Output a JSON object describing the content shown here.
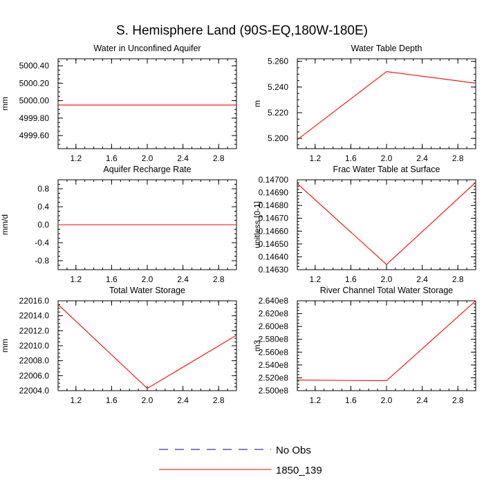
{
  "title": "S. Hemisphere Land (90S-EQ,180W-180E)",
  "colors": {
    "model": "#ff0000",
    "obs": "#00008b",
    "axis": "#000000"
  },
  "legend": [
    {
      "label": "No Obs",
      "style": "dashed",
      "color": "#00008b"
    },
    {
      "label": "1850_139",
      "style": "solid",
      "color": "#ff0000"
    }
  ],
  "chart_data": [
    {
      "type": "line",
      "title": "Water in Unconfined Aquifer",
      "ylabel": "mm",
      "xlim": [
        1.0,
        3.0
      ],
      "ylim": [
        4999.45,
        5000.48
      ],
      "xticks": [
        "1.2",
        "1.6",
        "2.0",
        "2.4",
        "2.8"
      ],
      "yticks": [
        "4999.60",
        "4999.80",
        "5000.00",
        "5000.20",
        "5000.40"
      ],
      "series": [
        {
          "name": "1850_139",
          "x": [
            1,
            2,
            3
          ],
          "y": [
            4999.95,
            4999.95,
            4999.95
          ]
        }
      ]
    },
    {
      "type": "line",
      "title": "Water Table Depth",
      "ylabel": "m",
      "xlim": [
        1.0,
        3.0
      ],
      "ylim": [
        5.192,
        5.262
      ],
      "xticks": [
        "1.2",
        "1.6",
        "2.0",
        "2.4",
        "2.8"
      ],
      "yticks": [
        "5.200",
        "5.220",
        "5.240",
        "5.260"
      ],
      "series": [
        {
          "name": "1850_139",
          "x": [
            1,
            2,
            3
          ],
          "y": [
            5.199,
            5.252,
            5.243
          ]
        }
      ]
    },
    {
      "type": "line",
      "title": "Aquifer Recharge Rate",
      "ylabel": "mm/d",
      "xlim": [
        1.0,
        3.0
      ],
      "ylim": [
        -1.0,
        1.0
      ],
      "xticks": [
        "1.2",
        "1.6",
        "2.0",
        "2.4",
        "2.8"
      ],
      "yticks": [
        "-0.8",
        "-0.4",
        "0.0",
        "0.4",
        "0.8"
      ],
      "series": [
        {
          "name": "1850_139",
          "x": [
            1,
            2,
            3
          ],
          "y": [
            0.0,
            0.0,
            0.0
          ]
        }
      ]
    },
    {
      "type": "line",
      "title": "Frac Water Table at Surface",
      "ylabel": "unitless [0-1]",
      "xlim": [
        1.0,
        3.0
      ],
      "ylim": [
        0.1463,
        0.147
      ],
      "xticks": [
        "1.2",
        "1.6",
        "2.0",
        "2.4",
        "2.8"
      ],
      "yticks": [
        "0.14630",
        "0.14640",
        "0.14650",
        "0.14660",
        "0.14670",
        "0.14680",
        "0.14690",
        "0.14700"
      ],
      "series": [
        {
          "name": "1850_139",
          "x": [
            1,
            2,
            3
          ],
          "y": [
            0.14697,
            0.14634,
            0.14698
          ]
        }
      ]
    },
    {
      "type": "line",
      "title": "Total Water Storage",
      "ylabel": "mm",
      "xlim": [
        1.0,
        3.0
      ],
      "ylim": [
        22004.0,
        22016.0
      ],
      "xticks": [
        "1.2",
        "1.6",
        "2.0",
        "2.4",
        "2.8"
      ],
      "yticks": [
        "22004.0",
        "22006.0",
        "22008.0",
        "22010.0",
        "22012.0",
        "22014.0",
        "22016.0"
      ],
      "series": [
        {
          "name": "1850_139",
          "x": [
            1,
            2,
            3
          ],
          "y": [
            22015.5,
            22004.3,
            22011.4
          ]
        }
      ]
    },
    {
      "type": "line",
      "title": "River Channel Total Water Storage",
      "ylabel": "m3",
      "xlim": [
        1.0,
        3.0
      ],
      "ylim": [
        250000000,
        264000000
      ],
      "xticks": [
        "1.2",
        "1.6",
        "2.0",
        "2.4",
        "2.8"
      ],
      "yticks": [
        "2.500e8",
        "2.520e8",
        "2.540e8",
        "2.560e8",
        "2.580e8",
        "2.600e8",
        "2.620e8",
        "2.640e8"
      ],
      "series": [
        {
          "name": "1850_139",
          "x": [
            1,
            2,
            3
          ],
          "y": [
            251650000,
            251550000,
            264000000
          ]
        }
      ]
    }
  ]
}
